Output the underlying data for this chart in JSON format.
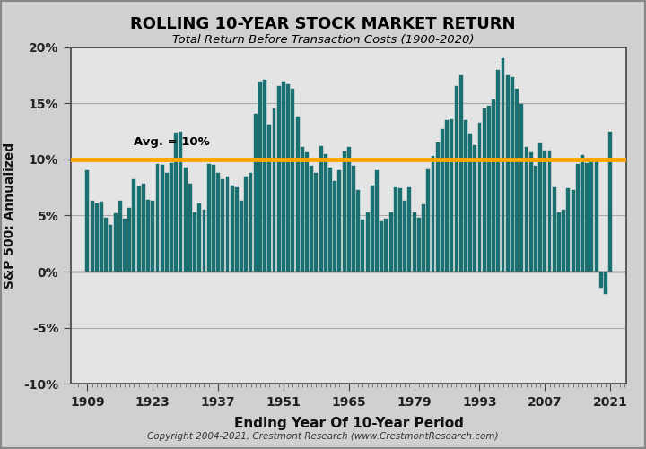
{
  "title": "ROLLING 10-YEAR STOCK MARKET RETURN",
  "subtitle": "Total Return Before Transaction Costs (1900-2020)",
  "xlabel": "Ending Year Of 10-Year Period",
  "ylabel": "S&P 500: Annualized",
  "copyright": "Copyright 2004-2021, Crestmont Research (www.CrestmontResearch.com)",
  "avg_label": "Avg. = 10%",
  "avg_value": 10.0,
  "bar_color": "#1a7070",
  "avg_line_color": "#FFA500",
  "background_color": "#d0d0d0",
  "plot_bg_color": "#e4e4e4",
  "ylim": [
    -10,
    20
  ],
  "yticks": [
    -10,
    -5,
    0,
    5,
    10,
    15,
    20
  ],
  "xtick_years": [
    1909,
    1923,
    1937,
    1951,
    1965,
    1979,
    1993,
    2007,
    2021
  ],
  "years": [
    1909,
    1910,
    1911,
    1912,
    1913,
    1914,
    1915,
    1916,
    1917,
    1918,
    1919,
    1920,
    1921,
    1922,
    1923,
    1924,
    1925,
    1926,
    1927,
    1928,
    1929,
    1930,
    1931,
    1932,
    1933,
    1934,
    1935,
    1936,
    1937,
    1938,
    1939,
    1940,
    1941,
    1942,
    1943,
    1944,
    1945,
    1946,
    1947,
    1948,
    1949,
    1950,
    1951,
    1952,
    1953,
    1954,
    1955,
    1956,
    1957,
    1958,
    1959,
    1960,
    1961,
    1962,
    1963,
    1964,
    1965,
    1966,
    1967,
    1968,
    1969,
    1970,
    1971,
    1972,
    1973,
    1974,
    1975,
    1976,
    1977,
    1978,
    1979,
    1980,
    1981,
    1982,
    1983,
    1984,
    1985,
    1986,
    1987,
    1988,
    1989,
    1990,
    1991,
    1992,
    1993,
    1994,
    1995,
    1996,
    1997,
    1998,
    1999,
    2000,
    2001,
    2002,
    2003,
    2004,
    2005,
    2006,
    2007,
    2008,
    2009,
    2010,
    2011,
    2012,
    2013,
    2014,
    2015,
    2016,
    2017,
    2018,
    2019,
    2020,
    2021
  ],
  "values": [
    9.0,
    6.3,
    6.1,
    6.2,
    4.8,
    4.2,
    5.2,
    6.3,
    4.7,
    5.7,
    8.2,
    7.6,
    7.8,
    6.4,
    6.3,
    9.6,
    9.5,
    8.8,
    9.7,
    12.4,
    12.5,
    9.3,
    7.8,
    5.3,
    6.1,
    5.5,
    9.6,
    9.5,
    8.8,
    8.2,
    8.5,
    7.7,
    7.5,
    6.3,
    8.5,
    8.8,
    14.1,
    16.9,
    17.1,
    13.1,
    14.5,
    16.5,
    16.9,
    16.7,
    16.3,
    13.8,
    11.1,
    10.6,
    9.4,
    8.8,
    11.2,
    10.5,
    9.3,
    8.1,
    9.0,
    10.7,
    11.1,
    9.4,
    7.3,
    4.6,
    5.3,
    7.7,
    9.0,
    4.5,
    4.7,
    5.3,
    7.5,
    7.4,
    6.3,
    7.5,
    5.3,
    4.8,
    6.0,
    9.1,
    10.3,
    11.5,
    12.7,
    13.5,
    13.6,
    16.5,
    17.5,
    13.5,
    12.3,
    11.3,
    13.3,
    14.5,
    14.8,
    15.3,
    18.0,
    19.0,
    17.5,
    17.3,
    16.3,
    14.9,
    11.1,
    10.6,
    9.4,
    11.4,
    10.8,
    10.8,
    7.5,
    5.3,
    5.5,
    7.4,
    7.3,
    9.6,
    10.4,
    9.7,
    10.0,
    10.0,
    -1.4,
    -2.0,
    12.5
  ]
}
